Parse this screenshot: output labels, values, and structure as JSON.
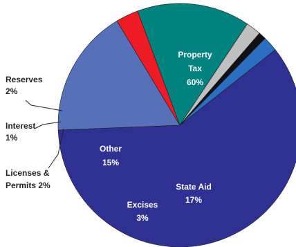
{
  "chart_data": {
    "type": "pie",
    "title": "",
    "slices": [
      {
        "name": "Property Tax",
        "value": 60,
        "label": [
          "Property",
          "Tax",
          "60%"
        ],
        "color": "#2e3192",
        "label_mode": "inside"
      },
      {
        "name": "State Aid",
        "value": 17,
        "label": [
          "State Aid",
          "17%"
        ],
        "color": "#5671b8",
        "label_mode": "inside"
      },
      {
        "name": "Excises",
        "value": 3,
        "label": [
          "Excises",
          "3%"
        ],
        "color": "#ed1c24",
        "label_mode": "inside"
      },
      {
        "name": "Other",
        "value": 15,
        "label": [
          "Other",
          "15%"
        ],
        "color": "#00827f",
        "label_mode": "inside"
      },
      {
        "name": "Licenses & Permits",
        "value": 2,
        "label": [
          "Licenses &",
          "Permits 2%"
        ],
        "color": "#c0c0c0",
        "label_mode": "outside"
      },
      {
        "name": "Interest",
        "value": 1,
        "label": [
          "Interest",
          "1%"
        ],
        "color": "#111111",
        "label_mode": "outside"
      },
      {
        "name": "Reserves",
        "value": 2,
        "label": [
          "Reserves",
          "2%"
        ],
        "color": "#2a6fc1",
        "label_mode": "outside"
      }
    ]
  }
}
